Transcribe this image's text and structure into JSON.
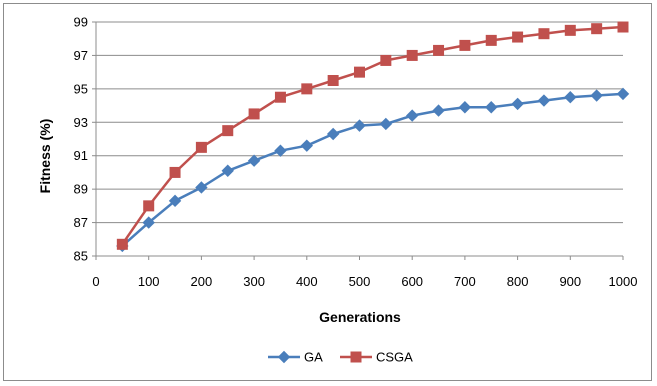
{
  "chart_data": {
    "type": "line",
    "title": "",
    "xlabel": "Generations",
    "ylabel": "Fitness (%)",
    "xlim": [
      0,
      1000
    ],
    "ylim": [
      85,
      99
    ],
    "xticks": [
      0,
      100,
      200,
      300,
      400,
      500,
      600,
      700,
      800,
      900,
      1000
    ],
    "yticks": [
      85,
      87,
      89,
      91,
      93,
      95,
      97,
      99
    ],
    "grid": "horizontal",
    "legend": "bottom",
    "x": [
      50,
      100,
      150,
      200,
      250,
      300,
      350,
      400,
      450,
      500,
      550,
      600,
      650,
      700,
      750,
      800,
      850,
      900,
      950,
      1000
    ],
    "series": [
      {
        "name": "GA",
        "color": "#4a7ebb",
        "marker": "diamond",
        "values": [
          85.6,
          87.0,
          88.3,
          89.1,
          90.1,
          90.7,
          91.3,
          91.6,
          92.3,
          92.8,
          92.9,
          93.4,
          93.7,
          93.9,
          93.9,
          94.1,
          94.3,
          94.5,
          94.6,
          94.7
        ]
      },
      {
        "name": "CSGA",
        "color": "#c0504d",
        "marker": "square",
        "values": [
          85.7,
          88.0,
          90.0,
          91.5,
          92.5,
          93.5,
          94.5,
          95.0,
          95.5,
          96.0,
          96.7,
          97.0,
          97.3,
          97.6,
          97.9,
          98.1,
          98.3,
          98.5,
          98.6,
          98.7
        ]
      }
    ]
  }
}
